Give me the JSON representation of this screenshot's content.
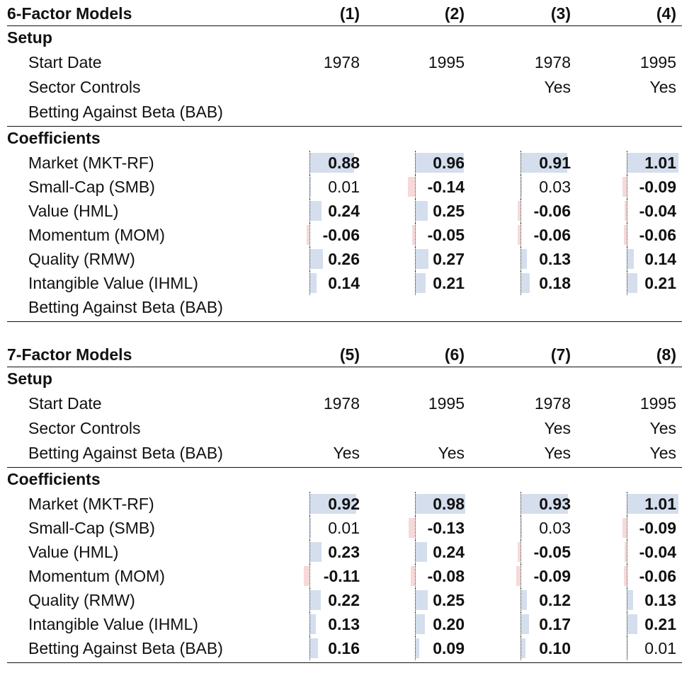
{
  "panels": [
    {
      "title": "6-Factor Models",
      "columns": [
        "(1)",
        "(2)",
        "(3)",
        "(4)"
      ],
      "setup_heading": "Setup",
      "setup_rows": [
        {
          "label": "Start Date",
          "values": [
            "1978",
            "1995",
            "1978",
            "1995"
          ]
        },
        {
          "label": "Sector Controls",
          "values": [
            "",
            "",
            "Yes",
            "Yes"
          ]
        },
        {
          "label": "Betting Against Beta (BAB)",
          "values": [
            "",
            "",
            "",
            ""
          ]
        }
      ],
      "coef_heading": "Coefficients",
      "coef_rows": [
        {
          "label": "Market (MKT-RF)",
          "values": [
            "0.88",
            "0.96",
            "0.91",
            "1.01"
          ],
          "bold": [
            true,
            true,
            true,
            true
          ]
        },
        {
          "label": "Small-Cap (SMB)",
          "values": [
            "0.01",
            "-0.14",
            "0.03",
            "-0.09"
          ],
          "bold": [
            false,
            true,
            false,
            true
          ]
        },
        {
          "label": "Value (HML)",
          "values": [
            "0.24",
            "0.25",
            "-0.06",
            "-0.04"
          ],
          "bold": [
            true,
            true,
            true,
            true
          ]
        },
        {
          "label": "Momentum (MOM)",
          "values": [
            "-0.06",
            "-0.05",
            "-0.06",
            "-0.06"
          ],
          "bold": [
            true,
            true,
            true,
            true
          ]
        },
        {
          "label": "Quality (RMW)",
          "values": [
            "0.26",
            "0.27",
            "0.13",
            "0.14"
          ],
          "bold": [
            true,
            true,
            true,
            true
          ]
        },
        {
          "label": "Intangible Value (IHML)",
          "values": [
            "0.14",
            "0.21",
            "0.18",
            "0.21"
          ],
          "bold": [
            true,
            true,
            true,
            true
          ]
        },
        {
          "label": "Betting Against Beta (BAB)",
          "values": [
            "",
            "",
            "",
            ""
          ],
          "bold": [
            false,
            false,
            false,
            false
          ]
        }
      ]
    },
    {
      "title": "7-Factor Models",
      "columns": [
        "(5)",
        "(6)",
        "(7)",
        "(8)"
      ],
      "setup_heading": "Setup",
      "setup_rows": [
        {
          "label": "Start Date",
          "values": [
            "1978",
            "1995",
            "1978",
            "1995"
          ]
        },
        {
          "label": "Sector Controls",
          "values": [
            "",
            "",
            "Yes",
            "Yes"
          ]
        },
        {
          "label": "Betting Against Beta (BAB)",
          "values": [
            "Yes",
            "Yes",
            "Yes",
            "Yes"
          ]
        }
      ],
      "coef_heading": "Coefficients",
      "coef_rows": [
        {
          "label": "Market (MKT-RF)",
          "values": [
            "0.92",
            "0.98",
            "0.93",
            "1.01"
          ],
          "bold": [
            true,
            true,
            true,
            true
          ]
        },
        {
          "label": "Small-Cap (SMB)",
          "values": [
            "0.01",
            "-0.13",
            "0.03",
            "-0.09"
          ],
          "bold": [
            false,
            true,
            false,
            true
          ]
        },
        {
          "label": "Value (HML)",
          "values": [
            "0.23",
            "0.24",
            "-0.05",
            "-0.04"
          ],
          "bold": [
            true,
            true,
            true,
            true
          ]
        },
        {
          "label": "Momentum (MOM)",
          "values": [
            "-0.11",
            "-0.08",
            "-0.09",
            "-0.06"
          ],
          "bold": [
            true,
            true,
            true,
            true
          ]
        },
        {
          "label": "Quality (RMW)",
          "values": [
            "0.22",
            "0.25",
            "0.12",
            "0.13"
          ],
          "bold": [
            true,
            true,
            true,
            true
          ]
        },
        {
          "label": "Intangible Value (IHML)",
          "values": [
            "0.13",
            "0.20",
            "0.17",
            "0.21"
          ],
          "bold": [
            true,
            true,
            true,
            true
          ]
        },
        {
          "label": "Betting Against Beta (BAB)",
          "values": [
            "0.16",
            "0.09",
            "0.10",
            "0.01"
          ],
          "bold": [
            true,
            true,
            true,
            false
          ]
        }
      ]
    }
  ],
  "colors": {
    "positive_bar": "#d4deed",
    "negative_bar": "#f7d9d9",
    "text": "#111111"
  }
}
